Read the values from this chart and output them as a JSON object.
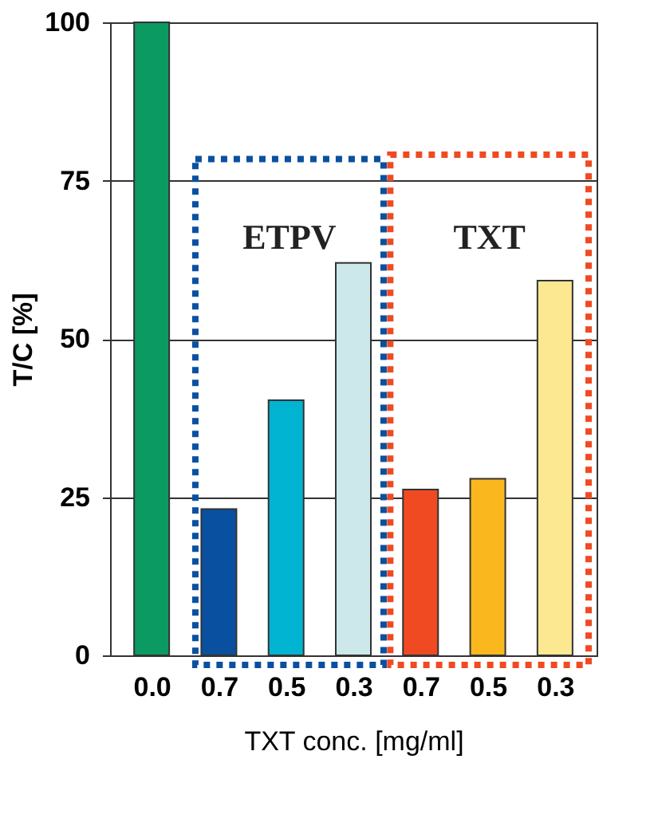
{
  "chart_data": {
    "type": "bar",
    "xlabel": "TXT conc. [mg/ml]",
    "ylabel": "T/C [%]",
    "categories": [
      "0.0",
      "0.7",
      "0.5",
      "0.3",
      "0.7",
      "0.5",
      "0.3"
    ],
    "values": [
      100,
      23.1,
      40.3,
      62.0,
      26.2,
      27.9,
      59.2
    ],
    "colors": [
      "#0a9a62",
      "#0a50a0",
      "#00b4d2",
      "#cce8ea",
      "#f04a22",
      "#fbb81e",
      "#fbe890"
    ],
    "ylim": [
      0,
      100
    ],
    "yticks": [
      0,
      25,
      50,
      75,
      100
    ],
    "grid": "y",
    "annotations": [
      "ETPV",
      "TXT"
    ]
  }
}
